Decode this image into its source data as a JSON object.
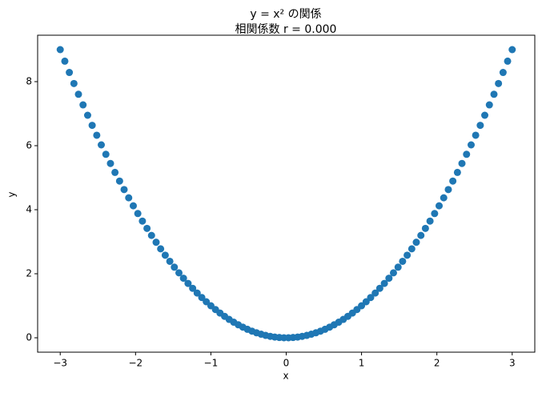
{
  "chart_data": {
    "type": "scatter",
    "title": [
      "y = x² の関係",
      "相関係数 r = 0.000"
    ],
    "xlabel": "x",
    "ylabel": "y",
    "color": "#1f77b4",
    "x": [
      -3.0,
      -2.939,
      -2.879,
      -2.818,
      -2.758,
      -2.697,
      -2.636,
      -2.576,
      -2.515,
      -2.455,
      -2.394,
      -2.333,
      -2.273,
      -2.212,
      -2.152,
      -2.091,
      -2.03,
      -1.97,
      -1.909,
      -1.848,
      -1.788,
      -1.727,
      -1.667,
      -1.606,
      -1.545,
      -1.485,
      -1.424,
      -1.364,
      -1.303,
      -1.242,
      -1.182,
      -1.121,
      -1.061,
      -1.0,
      -0.939,
      -0.879,
      -0.818,
      -0.758,
      -0.697,
      -0.636,
      -0.576,
      -0.515,
      -0.455,
      -0.394,
      -0.333,
      -0.273,
      -0.212,
      -0.152,
      -0.091,
      -0.03,
      0.03,
      0.091,
      0.152,
      0.212,
      0.273,
      0.333,
      0.394,
      0.455,
      0.515,
      0.576,
      0.636,
      0.697,
      0.758,
      0.818,
      0.879,
      0.939,
      1.0,
      1.061,
      1.121,
      1.182,
      1.242,
      1.303,
      1.364,
      1.424,
      1.485,
      1.545,
      1.606,
      1.667,
      1.727,
      1.788,
      1.848,
      1.909,
      1.97,
      2.03,
      2.091,
      2.152,
      2.212,
      2.273,
      2.333,
      2.394,
      2.455,
      2.515,
      2.576,
      2.636,
      2.697,
      2.758,
      2.818,
      2.879,
      2.939,
      3.0
    ],
    "values": [
      9.0,
      8.64,
      8.287,
      7.942,
      7.605,
      7.274,
      6.95,
      6.635,
      6.326,
      6.025,
      5.731,
      5.444,
      5.165,
      4.894,
      4.629,
      4.372,
      4.122,
      3.88,
      3.645,
      3.417,
      3.197,
      2.983,
      2.778,
      2.579,
      2.388,
      2.205,
      2.028,
      1.86,
      1.698,
      1.544,
      1.397,
      1.257,
      1.125,
      1.0,
      0.882,
      0.773,
      0.669,
      0.574,
      0.486,
      0.405,
      0.332,
      0.265,
      0.207,
      0.155,
      0.111,
      0.074,
      0.045,
      0.023,
      0.008,
      0.001,
      0.001,
      0.008,
      0.023,
      0.045,
      0.074,
      0.111,
      0.155,
      0.207,
      0.265,
      0.332,
      0.405,
      0.486,
      0.574,
      0.669,
      0.773,
      0.882,
      1.0,
      1.125,
      1.257,
      1.397,
      1.544,
      1.698,
      1.86,
      2.028,
      2.205,
      2.388,
      2.579,
      2.778,
      2.983,
      3.197,
      3.417,
      3.645,
      3.88,
      4.122,
      4.372,
      4.629,
      4.894,
      5.165,
      5.444,
      5.731,
      6.025,
      6.326,
      6.635,
      6.95,
      7.274,
      7.605,
      7.942,
      8.287,
      8.64,
      9.0
    ],
    "xlim": [
      -3.3,
      3.3
    ],
    "xticks": [
      {
        "value": -3,
        "label": "−3"
      },
      {
        "value": -2,
        "label": "−2"
      },
      {
        "value": -1,
        "label": "−1"
      },
      0,
      1,
      2,
      3
    ],
    "ylim": [
      -0.45,
      9.45
    ],
    "yticks": [
      0,
      2,
      4,
      6,
      8
    ],
    "grid": false
  }
}
